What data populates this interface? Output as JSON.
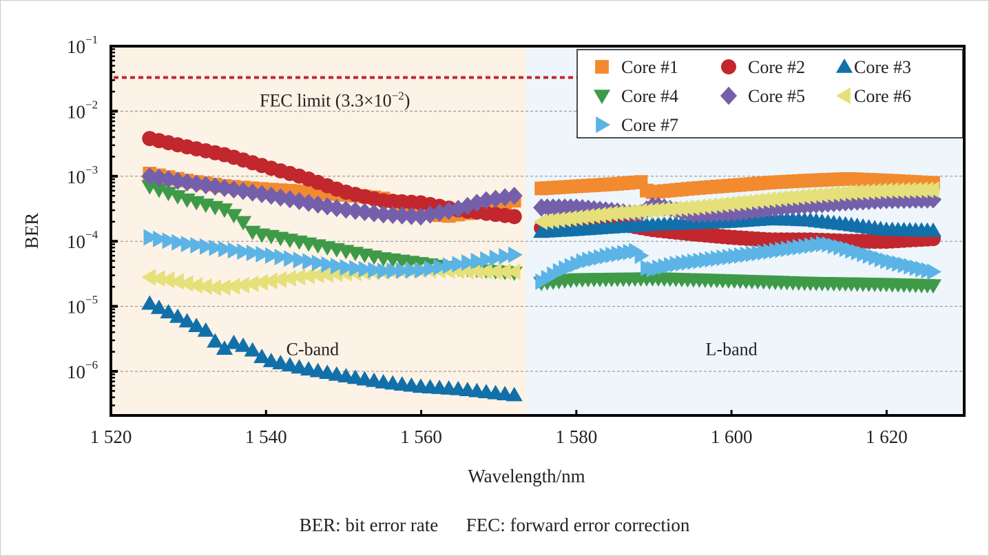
{
  "chart_data": {
    "type": "scatter",
    "title": "",
    "xlabel": "Wavelength/nm",
    "ylabel": "BER",
    "xlim": [
      1520,
      1630
    ],
    "ylim": [
      2.1e-07,
      0.1
    ],
    "yscale": "log",
    "x_ticks": [
      1520,
      1540,
      1560,
      1580,
      1600,
      1620
    ],
    "x_tick_labels": [
      "1 520",
      "1 540",
      "1 560",
      "1 580",
      "1 600",
      "1 620"
    ],
    "y_ticks": [
      1e-06,
      1e-05,
      0.0001,
      0.001,
      0.01,
      0.1
    ],
    "y_tick_labels": [
      {
        "base": "10",
        "exp": "−6"
      },
      {
        "base": "10",
        "exp": "−5"
      },
      {
        "base": "10",
        "exp": "−4"
      },
      {
        "base": "10",
        "exp": "−3"
      },
      {
        "base": "10",
        "exp": "−2"
      },
      {
        "base": "10",
        "exp": "−1"
      }
    ],
    "grid": "horizontal-dashed-at-decades",
    "legend_placement": "top-right",
    "bands": [
      {
        "name": "C-band",
        "label": "C-band",
        "range": [
          1520,
          1573.5
        ],
        "color": "#fdf2e6",
        "label_pos": [
          1546,
          2.2e-06
        ]
      },
      {
        "name": "L-band",
        "label": "L-band",
        "range": [
          1573.5,
          1630
        ],
        "color": "#eef6fc",
        "label_pos": [
          1600,
          2.2e-06
        ]
      }
    ],
    "fec_limit": {
      "value": 0.033,
      "label_text": "FEC limit (3.3×10",
      "label_exp": "−2",
      "label_close": ")",
      "color": "#c1272d"
    },
    "sample_step_nm": {
      "C-band": 1.2,
      "L-band": 0.75
    },
    "series": [
      {
        "name": "Core #1",
        "marker": "square",
        "color": "#f28a30",
        "segments": [
          {
            "x": [
              1525,
              1530,
              1535,
              1540,
              1545,
              1550,
              1555,
              1560,
              1563,
              1566,
              1572
            ],
            "y": [
              0.0011,
              0.00085,
              0.0007,
              0.00063,
              0.00058,
              0.00052,
              0.00046,
              0.0003,
              0.00024,
              0.00027,
              0.00042
            ]
          },
          {
            "x": [
              1575.5,
              1580,
              1585,
              1588.5,
              1589.2,
              1595,
              1600,
              1605,
              1610,
              1615,
              1620,
              1626
            ],
            "y": [
              0.00065,
              0.0007,
              0.00076,
              0.00082,
              0.00056,
              0.00065,
              0.00072,
              0.0008,
              0.00086,
              0.00091,
              0.00086,
              0.00079
            ]
          }
        ]
      },
      {
        "name": "Core #2",
        "marker": "circle",
        "color": "#c1272d",
        "segments": [
          {
            "x": [
              1525,
              1530,
              1535,
              1540,
              1545,
              1550,
              1555,
              1560,
              1565,
              1572
            ],
            "y": [
              0.0038,
              0.0028,
              0.0021,
              0.0014,
              0.00095,
              0.00058,
              0.00042,
              0.00039,
              0.0003,
              0.00024
            ]
          },
          {
            "x": [
              1575.5,
              1580,
              1585,
              1590,
              1595,
              1600,
              1605,
              1610,
              1615,
              1620,
              1626
            ],
            "y": [
              0.00016,
              0.00018,
              0.00019,
              0.00015,
              0.00013,
              0.000115,
              0.000105,
              0.000105,
              0.0001,
              0.0001,
              0.00011
            ]
          }
        ]
      },
      {
        "name": "Core #3",
        "marker": "triangle-up",
        "color": "#1170aa",
        "segments": [
          {
            "x": [
              1525,
              1528,
              1531,
              1533,
              1534,
              1536,
              1538,
              1540,
              1545,
              1550,
              1555,
              1560,
              1565,
              1572
            ],
            "y": [
              1.1e-05,
              7.5e-06,
              5e-06,
              3.8e-06,
              2e-06,
              2.8e-06,
              2.2e-06,
              1.5e-06,
              1.1e-06,
              8.5e-07,
              6.8e-07,
              5.8e-07,
              5.3e-07,
              4.3e-07
            ]
          },
          {
            "x": [
              1575.5,
              1580,
              1585,
              1590,
              1595,
              1600,
              1605,
              1610,
              1615,
              1620,
              1626
            ],
            "y": [
              0.00014,
              0.00015,
              0.000165,
              0.00018,
              0.00019,
              0.0002,
              0.00022,
              0.00021,
              0.00018,
              0.00015,
              0.000145
            ]
          }
        ]
      },
      {
        "name": "Core #4",
        "marker": "triangle-down",
        "color": "#3e9a47",
        "segments": [
          {
            "x": [
              1525,
              1530,
              1535,
              1537,
              1538.5,
              1540,
              1545,
              1550,
              1555,
              1560,
              1565,
              1572
            ],
            "y": [
              0.0007,
              0.00043,
              0.0003,
              0.0002,
              0.00013,
              0.000125,
              9.5e-05,
              7.2e-05,
              5.5e-05,
              4.6e-05,
              3.8e-05,
              3.3e-05
            ]
          },
          {
            "x": [
              1575.5,
              1580,
              1590,
              1600,
              1610,
              1620,
              1626
            ],
            "y": [
              2.3e-05,
              2.6e-05,
              2.7e-05,
              2.5e-05,
              2.3e-05,
              2.2e-05,
              2.1e-05
            ]
          }
        ]
      },
      {
        "name": "Core #5",
        "marker": "diamond",
        "color": "#7460aa",
        "segments": [
          {
            "x": [
              1525,
              1530,
              1535,
              1540,
              1545,
              1550,
              1555,
              1560,
              1565,
              1568,
              1572
            ],
            "y": [
              0.001,
              0.0008,
              0.00065,
              0.00052,
              0.0004,
              0.00031,
              0.00026,
              0.00024,
              0.00032,
              0.00042,
              0.0005
            ]
          },
          {
            "x": [
              1575.5,
              1580,
              1585,
              1588,
              1590,
              1595,
              1600,
              1605,
              1610,
              1615,
              1620,
              1626
            ],
            "y": [
              0.00033,
              0.00033,
              0.00029,
              0.00026,
              0.00036,
              0.00026,
              0.00027,
              0.00032,
              0.00036,
              0.0004,
              0.00043,
              0.00044
            ]
          }
        ]
      },
      {
        "name": "Core #6",
        "marker": "triangle-left",
        "color": "#e6e07a",
        "segments": [
          {
            "x": [
              1525,
              1528,
              1531,
              1534,
              1538,
              1542,
              1546,
              1550,
              1555,
              1560,
              1565,
              1572
            ],
            "y": [
              2.8e-05,
              2.5e-05,
              2.1e-05,
              1.9e-05,
              2.2e-05,
              2.6e-05,
              3e-05,
              3.2e-05,
              3.4e-05,
              3.6e-05,
              3.5e-05,
              3.4e-05
            ]
          },
          {
            "x": [
              1575.5,
              1580,
              1585,
              1590,
              1595,
              1600,
              1605,
              1610,
              1615,
              1620,
              1626
            ],
            "y": [
              0.0002,
              0.00023,
              0.00027,
              0.0003,
              0.00033,
              0.00038,
              0.00044,
              0.0005,
              0.00056,
              0.0006,
              0.00062
            ]
          }
        ]
      },
      {
        "name": "Core #7",
        "marker": "triangle-right",
        "color": "#5bb4e5",
        "segments": [
          {
            "x": [
              1525,
              1530,
              1535,
              1540,
              1545,
              1550,
              1555,
              1560,
              1565,
              1572
            ],
            "y": [
              0.000115,
              9e-05,
              7.5e-05,
              6.2e-05,
              5e-05,
              4e-05,
              3.5e-05,
              3.6e-05,
              4.5e-05,
              6.2e-05
            ]
          },
          {
            "x": [
              1575.5,
              1578,
              1581,
              1584,
              1588,
              1589.2,
              1593,
              1597,
              1601,
              1605,
              1609,
              1612,
              1615,
              1620,
              1626
            ],
            "y": [
              2.4e-05,
              3.6e-05,
              5e-05,
              6e-05,
              7.2e-05,
              3.6e-05,
              4.5e-05,
              5.2e-05,
              6e-05,
              7e-05,
              8.2e-05,
              9.2e-05,
              7.5e-05,
              5e-05,
              3.4e-05
            ]
          }
        ]
      }
    ]
  },
  "figure": {
    "caption": "BER: bit error rate      FEC: forward error correction"
  }
}
